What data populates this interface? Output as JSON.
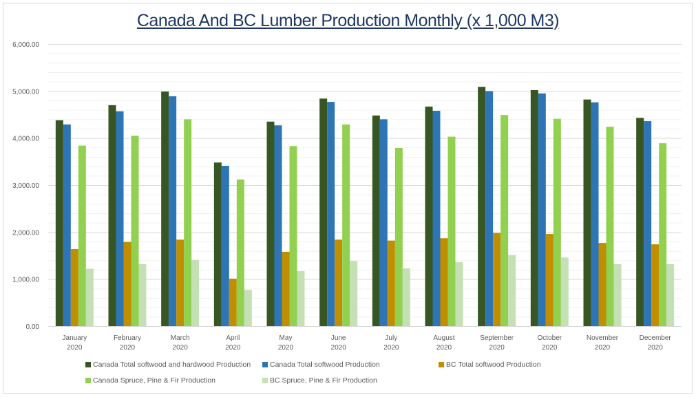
{
  "chart_data": {
    "type": "bar",
    "title": "Canada And BC Lumber Production Monthly (x 1,000 M3)",
    "xlabel": "",
    "ylabel": "",
    "ylim": [
      0,
      6000
    ],
    "yticks": [
      "0.00",
      "1,000.00",
      "2,000.00",
      "3,000.00",
      "4,000.00",
      "5,000.00",
      "6,000.00"
    ],
    "ytick_values": [
      0,
      1000,
      2000,
      3000,
      4000,
      5000,
      6000
    ],
    "minor_grid_step": 200,
    "grid": true,
    "legend_position": "bottom",
    "categories": [
      [
        "January",
        "2020"
      ],
      [
        "February",
        "2020"
      ],
      [
        "March",
        "2020"
      ],
      [
        "April",
        "2020"
      ],
      [
        "May",
        "2020"
      ],
      [
        "June",
        "2020"
      ],
      [
        "July",
        "2020"
      ],
      [
        "August",
        "2020"
      ],
      [
        "September",
        "2020"
      ],
      [
        "October",
        "2020"
      ],
      [
        "November",
        "2020"
      ],
      [
        "December",
        "2020"
      ]
    ],
    "series": [
      {
        "name": "Canada Total softwood and hardwood Production",
        "color": "#375623",
        "values": [
          4380,
          4700,
          4990,
          3480,
          4350,
          4840,
          4480,
          4670,
          5090,
          5020,
          4820,
          4430
        ]
      },
      {
        "name": "Canada Total softwood Production",
        "color": "#2e75b6",
        "values": [
          4290,
          4570,
          4890,
          3410,
          4270,
          4770,
          4400,
          4580,
          5000,
          4950,
          4760,
          4360
        ]
      },
      {
        "name": "BC Total softwood Production",
        "color": "#bf8f00",
        "values": [
          1640,
          1790,
          1840,
          1010,
          1580,
          1840,
          1820,
          1870,
          1980,
          1960,
          1770,
          1740
        ]
      },
      {
        "name": "Canada Spruce, Pine & Fir Production",
        "color": "#92d050",
        "values": [
          3840,
          4050,
          4400,
          3120,
          3830,
          4290,
          3790,
          4030,
          4490,
          4410,
          4240,
          3890
        ]
      },
      {
        "name": "BC Spruce, Pine & Fir Production",
        "color": "#c5e0b4",
        "values": [
          1220,
          1320,
          1410,
          770,
          1170,
          1390,
          1230,
          1360,
          1510,
          1460,
          1320,
          1320
        ]
      }
    ]
  }
}
